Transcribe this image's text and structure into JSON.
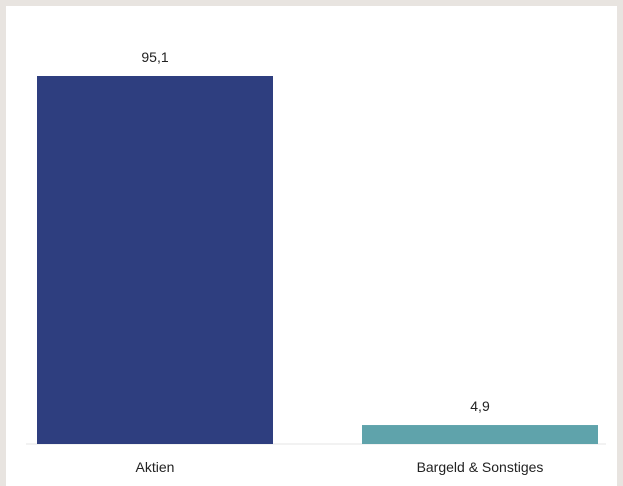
{
  "chart_data": {
    "type": "bar",
    "categories": [
      "Aktien",
      "Bargeld & Sonstiges"
    ],
    "values": [
      95.1,
      4.9
    ],
    "value_labels": [
      "95,1",
      "4,9"
    ],
    "colors": [
      "#2e3e7f",
      "#5fa3ab"
    ],
    "title": "",
    "xlabel": "",
    "ylabel": "",
    "ylim": [
      0,
      95.1
    ],
    "grid": false,
    "legend": "none"
  }
}
